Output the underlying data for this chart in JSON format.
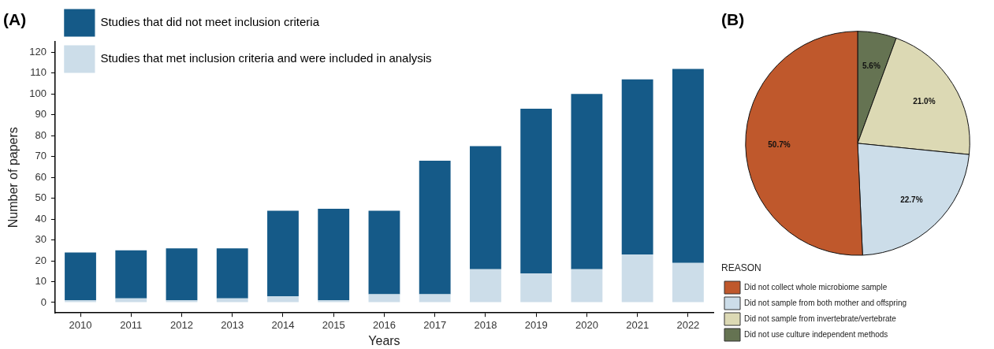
{
  "chart_data": [
    {
      "type": "bar",
      "title": "(A)",
      "xlabel": "Years",
      "ylabel": "Number of papers",
      "categories": [
        "2010",
        "2011",
        "2012",
        "2013",
        "2014",
        "2015",
        "2016",
        "2017",
        "2018",
        "2019",
        "2020",
        "2021",
        "2022"
      ],
      "series": [
        {
          "name": "Studies that met inclusion criteria and were included in analysis",
          "color": "#ccdde9",
          "values": [
            1,
            2,
            1,
            2,
            3,
            1,
            4,
            4,
            16,
            14,
            16,
            23,
            19
          ]
        },
        {
          "name": "Studies that did not meet inclusion criteria",
          "color": "#155a88",
          "values": [
            23,
            23,
            25,
            24,
            41,
            44,
            40,
            64,
            59,
            79,
            84,
            84,
            93
          ]
        }
      ],
      "stacked": true,
      "ylim": [
        -5,
        125
      ],
      "yticks": [
        0,
        10,
        20,
        30,
        40,
        50,
        60,
        70,
        80,
        90,
        100,
        110,
        120
      ],
      "grid": false,
      "legend": "top left"
    },
    {
      "type": "pie",
      "title": "(B)",
      "legend_title": "REASON",
      "categories": [
        "Did not collect whole microbiome sample",
        "Did not sample from both mother and offspring",
        "Did not sample from invertebrate/vertebrate",
        "Did not use culture independent methods"
      ],
      "values": [
        50.7,
        22.7,
        21.0,
        5.6
      ],
      "colors": [
        "#bf582c",
        "#ccdde9",
        "#dcd9b4",
        "#657352"
      ],
      "value_labels": [
        "50.7%",
        "22.7%",
        "21.0%",
        "5.6%"
      ],
      "legend": "bottom"
    }
  ]
}
